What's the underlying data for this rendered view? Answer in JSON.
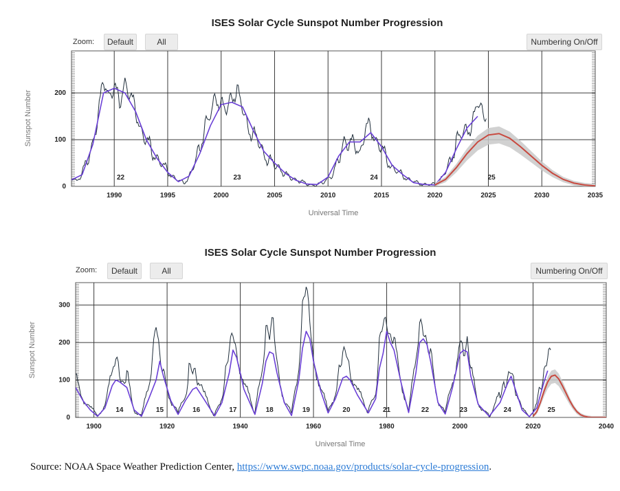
{
  "charts": [
    {
      "title": "ISES Solar Cycle Sunspot Number Progression",
      "zoom_label": "Zoom:",
      "default_button": "Default",
      "all_button": "All",
      "numbering_button": "Numbering On/Off"
    },
    {
      "title": "ISES Solar Cycle Sunspot Number Progression",
      "zoom_label": "Zoom:",
      "default_button": "Default",
      "all_button": "All",
      "numbering_button": "Numbering On/Off"
    }
  ],
  "source": {
    "prefix": "Source: NOAA Space Weather Prediction Center, ",
    "link": "https://www.swpc.noaa.gov/products/solar-cycle-progression",
    "suffix": "."
  },
  "colors": {
    "monthly": "#1f2d3a",
    "smoothed": "#6a3fd6",
    "predicted": "#c8493f",
    "band": "#c9c9c9",
    "grid": "#3a3a3a"
  },
  "chart_data": [
    {
      "type": "line",
      "title": "ISES Solar Cycle Sunspot Number Progression",
      "xlabel": "Universal Time",
      "ylabel": "Sunspot Number",
      "xlim": [
        1986,
        2035
      ],
      "ylim": [
        0,
        290
      ],
      "x_ticks": [
        1990,
        1995,
        2000,
        2005,
        2010,
        2015,
        2020,
        2025,
        2030,
        2035
      ],
      "y_ticks": [
        0,
        100,
        200
      ],
      "cycle_labels": [
        {
          "label": "22",
          "x": 1990.6,
          "y": 15
        },
        {
          "label": "23",
          "x": 2001.5,
          "y": 15
        },
        {
          "label": "24",
          "x": 2014.3,
          "y": 15
        },
        {
          "label": "25",
          "x": 2025.3,
          "y": 15
        }
      ],
      "series": [
        {
          "name": "Monthly sunspot number",
          "style": "monthly",
          "x": [
            1986,
            1986.5,
            1987,
            1987.5,
            1988,
            1988.5,
            1989,
            1989.5,
            1990,
            1990.5,
            1991,
            1991.5,
            1992,
            1992.5,
            1993,
            1993.5,
            1994,
            1994.5,
            1995,
            1995.5,
            1996,
            1996.5,
            1997,
            1997.5,
            1998,
            1998.5,
            1999,
            1999.5,
            2000,
            2000.5,
            2001,
            2001.5,
            2002,
            2002.5,
            2003,
            2003.5,
            2004,
            2004.5,
            2005,
            2005.5,
            2006,
            2006.5,
            2007,
            2007.5,
            2008,
            2008.5,
            2009,
            2009.5,
            2010,
            2010.5,
            2011,
            2011.5,
            2012,
            2012.5,
            2013,
            2013.5,
            2014,
            2014.5,
            2015,
            2015.5,
            2016,
            2016.5,
            2017,
            2017.5,
            2018,
            2018.5,
            2019,
            2019.5,
            2020,
            2020.5,
            2021,
            2021.5,
            2022,
            2022.5,
            2023,
            2023.5,
            2024,
            2024.5,
            2024.8
          ],
          "values": [
            20,
            12,
            28,
            55,
            95,
            150,
            230,
            195,
            210,
            180,
            225,
            190,
            165,
            120,
            95,
            80,
            60,
            45,
            35,
            20,
            12,
            8,
            20,
            45,
            85,
            130,
            150,
            195,
            175,
            160,
            195,
            205,
            165,
            130,
            110,
            95,
            70,
            55,
            45,
            40,
            25,
            18,
            15,
            10,
            5,
            3,
            3,
            8,
            18,
            25,
            60,
            100,
            85,
            95,
            70,
            120,
            130,
            95,
            80,
            60,
            40,
            30,
            25,
            15,
            10,
            7,
            4,
            3,
            6,
            12,
            30,
            60,
            95,
            110,
            125,
            130,
            180,
            160,
            145
          ]
        },
        {
          "name": "Smoothed sunspot number",
          "style": "smoothed",
          "x": [
            1986,
            1987,
            1988,
            1989,
            1990,
            1991,
            1992,
            1993,
            1994,
            1995,
            1996,
            1997,
            1998,
            1999,
            2000,
            2001,
            2002,
            2003,
            2004,
            2005,
            2006,
            2007,
            2008,
            2009,
            2010,
            2011,
            2012,
            2013,
            2014,
            2015,
            2016,
            2017,
            2018,
            2019,
            2020,
            2021,
            2022,
            2023,
            2024
          ],
          "values": [
            14,
            25,
            90,
            200,
            210,
            200,
            160,
            100,
            60,
            30,
            10,
            22,
            70,
            130,
            175,
            180,
            170,
            120,
            75,
            50,
            28,
            13,
            5,
            4,
            20,
            65,
            95,
            95,
            115,
            85,
            45,
            25,
            8,
            4,
            3,
            30,
            80,
            125,
            150
          ]
        },
        {
          "name": "Predicted sunspot number",
          "style": "predicted",
          "x": [
            2020,
            2021,
            2022,
            2023,
            2024,
            2025,
            2026,
            2027,
            2028,
            2029,
            2030,
            2031,
            2032,
            2033,
            2034,
            2035
          ],
          "values": [
            3,
            15,
            40,
            70,
            95,
            110,
            113,
            103,
            85,
            65,
            45,
            28,
            15,
            7,
            3,
            1
          ]
        }
      ]
    },
    {
      "type": "line",
      "title": "ISES Solar Cycle Sunspot Number Progression",
      "xlabel": "Universal Time",
      "ylabel": "Sunspot Number",
      "xlim": [
        1895,
        2040
      ],
      "ylim": [
        0,
        360
      ],
      "x_ticks": [
        1900,
        1920,
        1940,
        1960,
        1980,
        2000,
        2020,
        2040
      ],
      "y_ticks": [
        0,
        100,
        200,
        300
      ],
      "cycle_labels": [
        {
          "label": "14",
          "x": 1907,
          "y": 15
        },
        {
          "label": "15",
          "x": 1918,
          "y": 15
        },
        {
          "label": "16",
          "x": 1928,
          "y": 15
        },
        {
          "label": "17",
          "x": 1938,
          "y": 15
        },
        {
          "label": "18",
          "x": 1948,
          "y": 15
        },
        {
          "label": "19",
          "x": 1958,
          "y": 15
        },
        {
          "label": "20",
          "x": 1969,
          "y": 15
        },
        {
          "label": "21",
          "x": 1980,
          "y": 15
        },
        {
          "label": "22",
          "x": 1990.5,
          "y": 15
        },
        {
          "label": "23",
          "x": 2001,
          "y": 15
        },
        {
          "label": "24",
          "x": 2013,
          "y": 15
        },
        {
          "label": "25",
          "x": 2025,
          "y": 15
        }
      ],
      "series": [
        {
          "name": "Monthly sunspot number",
          "style": "monthly",
          "x": [
            1895,
            1897,
            1899,
            1901,
            1903,
            1905,
            1906,
            1907,
            1908,
            1909,
            1911,
            1913,
            1915,
            1916,
            1917,
            1918,
            1919,
            1921,
            1923,
            1925,
            1926,
            1927,
            1928,
            1930,
            1933,
            1935,
            1936,
            1937,
            1938,
            1939,
            1941,
            1944,
            1946,
            1947,
            1948,
            1949,
            1950,
            1952,
            1954,
            1956,
            1957,
            1958,
            1959,
            1960,
            1962,
            1964,
            1966,
            1967,
            1968,
            1969,
            1970,
            1972,
            1975,
            1977,
            1978,
            1979,
            1980,
            1981,
            1982,
            1984,
            1986,
            1988,
            1989,
            1990,
            1991,
            1992,
            1994,
            1996,
            1998,
            2000,
            2001,
            2002,
            2003,
            2005,
            2008,
            2011,
            2012,
            2013,
            2014,
            2015,
            2017,
            2019,
            2021,
            2022,
            2023,
            2024,
            2024.8
          ],
          "values": [
            100,
            55,
            25,
            5,
            35,
            110,
            150,
            125,
            95,
            110,
            20,
            5,
            80,
            150,
            250,
            180,
            115,
            50,
            10,
            60,
            130,
            115,
            120,
            60,
            5,
            60,
            130,
            170,
            230,
            180,
            90,
            10,
            130,
            230,
            210,
            280,
            145,
            50,
            8,
            140,
            300,
            340,
            270,
            160,
            80,
            15,
            70,
            140,
            160,
            170,
            130,
            70,
            15,
            70,
            200,
            240,
            260,
            220,
            200,
            100,
            15,
            150,
            240,
            230,
            210,
            170,
            50,
            10,
            100,
            200,
            180,
            210,
            120,
            40,
            3,
            60,
            100,
            90,
            120,
            90,
            20,
            3,
            40,
            90,
            120,
            150,
            180
          ]
        },
        {
          "name": "Smoothed sunspot number",
          "style": "smoothed",
          "x": [
            1895,
            1897,
            1899,
            1901,
            1903,
            1905,
            1906,
            1907,
            1909,
            1911,
            1913,
            1915,
            1917,
            1918,
            1919,
            1921,
            1923,
            1925,
            1927,
            1928,
            1930,
            1933,
            1935,
            1937,
            1938,
            1939,
            1941,
            1944,
            1946,
            1947,
            1948,
            1949,
            1950,
            1952,
            1954,
            1956,
            1957,
            1958,
            1959,
            1960,
            1962,
            1964,
            1966,
            1968,
            1969,
            1970,
            1972,
            1975,
            1977,
            1978,
            1979,
            1980,
            1981,
            1982,
            1984,
            1986,
            1988,
            1989,
            1990,
            1991,
            1992,
            1994,
            1996,
            1998,
            2000,
            2001,
            2002,
            2003,
            2005,
            2008,
            2011,
            2012,
            2013,
            2014,
            2015,
            2017,
            2019,
            2021,
            2022,
            2023,
            2024
          ],
          "values": [
            80,
            45,
            20,
            3,
            25,
            85,
            100,
            95,
            80,
            20,
            3,
            50,
            100,
            150,
            110,
            45,
            8,
            45,
            75,
            80,
            50,
            4,
            40,
            120,
            180,
            160,
            75,
            8,
            90,
            150,
            175,
            170,
            120,
            40,
            5,
            100,
            185,
            230,
            210,
            150,
            70,
            12,
            50,
            105,
            110,
            100,
            60,
            12,
            50,
            130,
            170,
            230,
            200,
            180,
            90,
            13,
            120,
            200,
            210,
            195,
            150,
            40,
            9,
            80,
            170,
            180,
            175,
            110,
            35,
            3,
            40,
            65,
            90,
            110,
            80,
            20,
            2,
            25,
            60,
            95,
            125
          ]
        },
        {
          "name": "Predicted sunspot number",
          "style": "predicted",
          "x": [
            2020,
            2021,
            2022,
            2023,
            2024,
            2025,
            2026,
            2027,
            2028,
            2029,
            2030,
            2031,
            2032,
            2033,
            2034,
            2035,
            2036,
            2040
          ],
          "values": [
            3,
            15,
            40,
            70,
            95,
            110,
            113,
            103,
            85,
            65,
            45,
            28,
            15,
            7,
            3,
            1,
            0,
            0
          ]
        }
      ]
    }
  ]
}
